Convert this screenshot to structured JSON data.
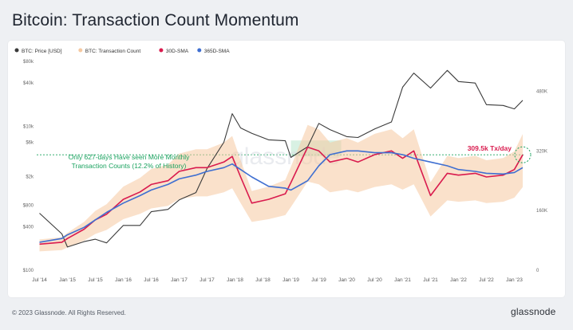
{
  "page": {
    "title": "Bitcoin: Transaction Count Momentum",
    "footer": "© 2023 Glassnode. All Rights Reserved.",
    "brand": "glassnode",
    "watermark": "glassnode"
  },
  "chart_data": {
    "type": "line",
    "title": "Bitcoin: Transaction Count Momentum",
    "legend": [
      {
        "name": "BTC: Price [USD]",
        "color": "#3a3a3a"
      },
      {
        "name": "BTC: Transaction Count",
        "color": "#f5c9a1"
      },
      {
        "name": "30D-SMA",
        "color": "#d91b4e"
      },
      {
        "name": "365D-SMA",
        "color": "#3f6fd1"
      }
    ],
    "legend_position": "top-left",
    "x_ticks": [
      "Jul '14",
      "Jan '15",
      "Jul '15",
      "Jan '16",
      "Jul '16",
      "Jan '17",
      "Jul '17",
      "Jan '18",
      "Jul '18",
      "Jan '19",
      "Jul '19",
      "Jan '20",
      "Jul '20",
      "Jan '21",
      "Jul '21",
      "Jan '22",
      "Jul '22",
      "Jan '23"
    ],
    "y_left": {
      "scale": "log",
      "ticks": [
        "$100",
        "$400",
        "$800",
        "$2k",
        "$6k",
        "$10k",
        "$40k",
        "$80k"
      ]
    },
    "y_right": {
      "ticks": [
        "0",
        "160K",
        "320K",
        "480K"
      ]
    },
    "x": [
      2014.5,
      2014.9,
      2015.0,
      2015.3,
      2015.5,
      2015.7,
      2016.0,
      2016.3,
      2016.5,
      2016.8,
      2017.0,
      2017.3,
      2017.5,
      2017.8,
      2017.95,
      2018.1,
      2018.3,
      2018.6,
      2018.9,
      2019.0,
      2019.3,
      2019.5,
      2019.7,
      2020.0,
      2020.2,
      2020.5,
      2020.8,
      2021.0,
      2021.2,
      2021.5,
      2021.8,
      2022.0,
      2022.3,
      2022.5,
      2022.8,
      2023.0,
      2023.15
    ],
    "series": [
      {
        "name": "BTC: Price [USD]",
        "unit": "USD",
        "values": [
          620,
          320,
          210,
          250,
          270,
          240,
          420,
          420,
          650,
          700,
          950,
          1200,
          2600,
          6000,
          15000,
          9500,
          8000,
          6500,
          6300,
          3700,
          5200,
          11000,
          9000,
          7200,
          7000,
          9200,
          11500,
          35000,
          55000,
          34000,
          60000,
          42000,
          40000,
          20000,
          19500,
          17500,
          23000
        ]
      },
      {
        "name": "30D-SMA",
        "unit": "tx/day",
        "values": [
          70000,
          75000,
          85000,
          110000,
          135000,
          150000,
          190000,
          210000,
          230000,
          240000,
          265000,
          275000,
          275000,
          290000,
          305000,
          250000,
          180000,
          190000,
          205000,
          235000,
          330000,
          320000,
          290000,
          300000,
          290000,
          310000,
          320000,
          300000,
          320000,
          200000,
          260000,
          255000,
          260000,
          250000,
          255000,
          270000,
          309500
        ]
      },
      {
        "name": "365D-SMA",
        "unit": "tx/day",
        "values": [
          75000,
          85000,
          95000,
          115000,
          135000,
          155000,
          180000,
          200000,
          215000,
          230000,
          245000,
          255000,
          265000,
          275000,
          285000,
          270000,
          250000,
          225000,
          220000,
          215000,
          240000,
          280000,
          310000,
          320000,
          320000,
          315000,
          315000,
          310000,
          300000,
          290000,
          280000,
          270000,
          265000,
          260000,
          258000,
          262000,
          275000
        ]
      }
    ],
    "annotations": [
      {
        "text": "Only 627-days Have seen More Monthly",
        "color": "#1aa25f"
      },
      {
        "text": "Transaction Counts (12.2% of History)",
        "color": "#1aa25f"
      },
      {
        "text": "309.5k Tx/day",
        "color": "#d91b4e"
      }
    ],
    "threshold_value": 309500,
    "grid": false
  }
}
